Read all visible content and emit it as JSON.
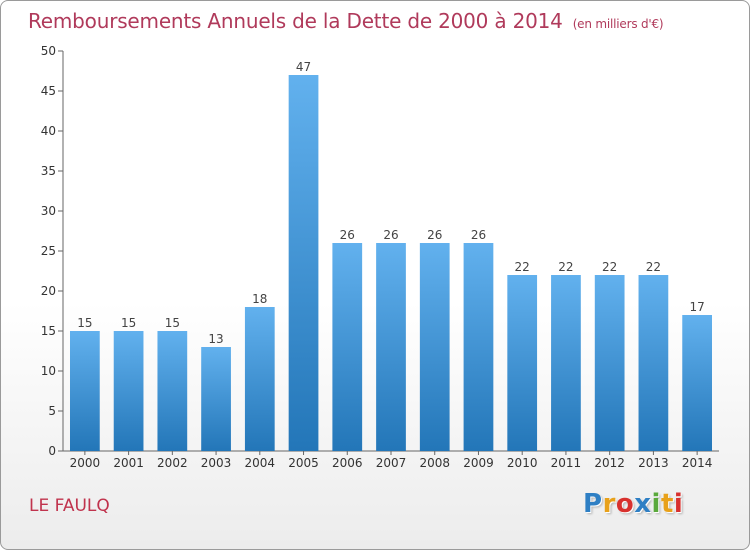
{
  "header": {
    "title": "Remboursements Annuels de la Dette de 2000 à 2014",
    "unit": "(en milliers d'€)"
  },
  "footer": {
    "town": "LE FAULQ",
    "logo_letters": [
      "P",
      "r",
      "o",
      "x",
      "i",
      "t",
      "i"
    ],
    "logo_colors": [
      "#2e7fc4",
      "#e8a11a",
      "#d8312e",
      "#2e7fc4",
      "#5aa93c",
      "#e8a11a",
      "#d8312e"
    ]
  },
  "chart_data": {
    "type": "bar",
    "title": "Remboursements Annuels de la Dette de 2000 à 2014",
    "categories": [
      "2000",
      "2001",
      "2002",
      "2003",
      "2004",
      "2005",
      "2006",
      "2007",
      "2008",
      "2009",
      "2010",
      "2011",
      "2012",
      "2013",
      "2014"
    ],
    "values": [
      15,
      15,
      15,
      13,
      18,
      47,
      26,
      26,
      26,
      26,
      22,
      22,
      22,
      22,
      17
    ],
    "xlabel": "",
    "ylabel": "",
    "ylim": [
      0,
      50
    ],
    "yticks": [
      0,
      5,
      10,
      15,
      20,
      25,
      30,
      35,
      40,
      45,
      50
    ],
    "grid": false,
    "bar_color": "#3d8fd6"
  }
}
